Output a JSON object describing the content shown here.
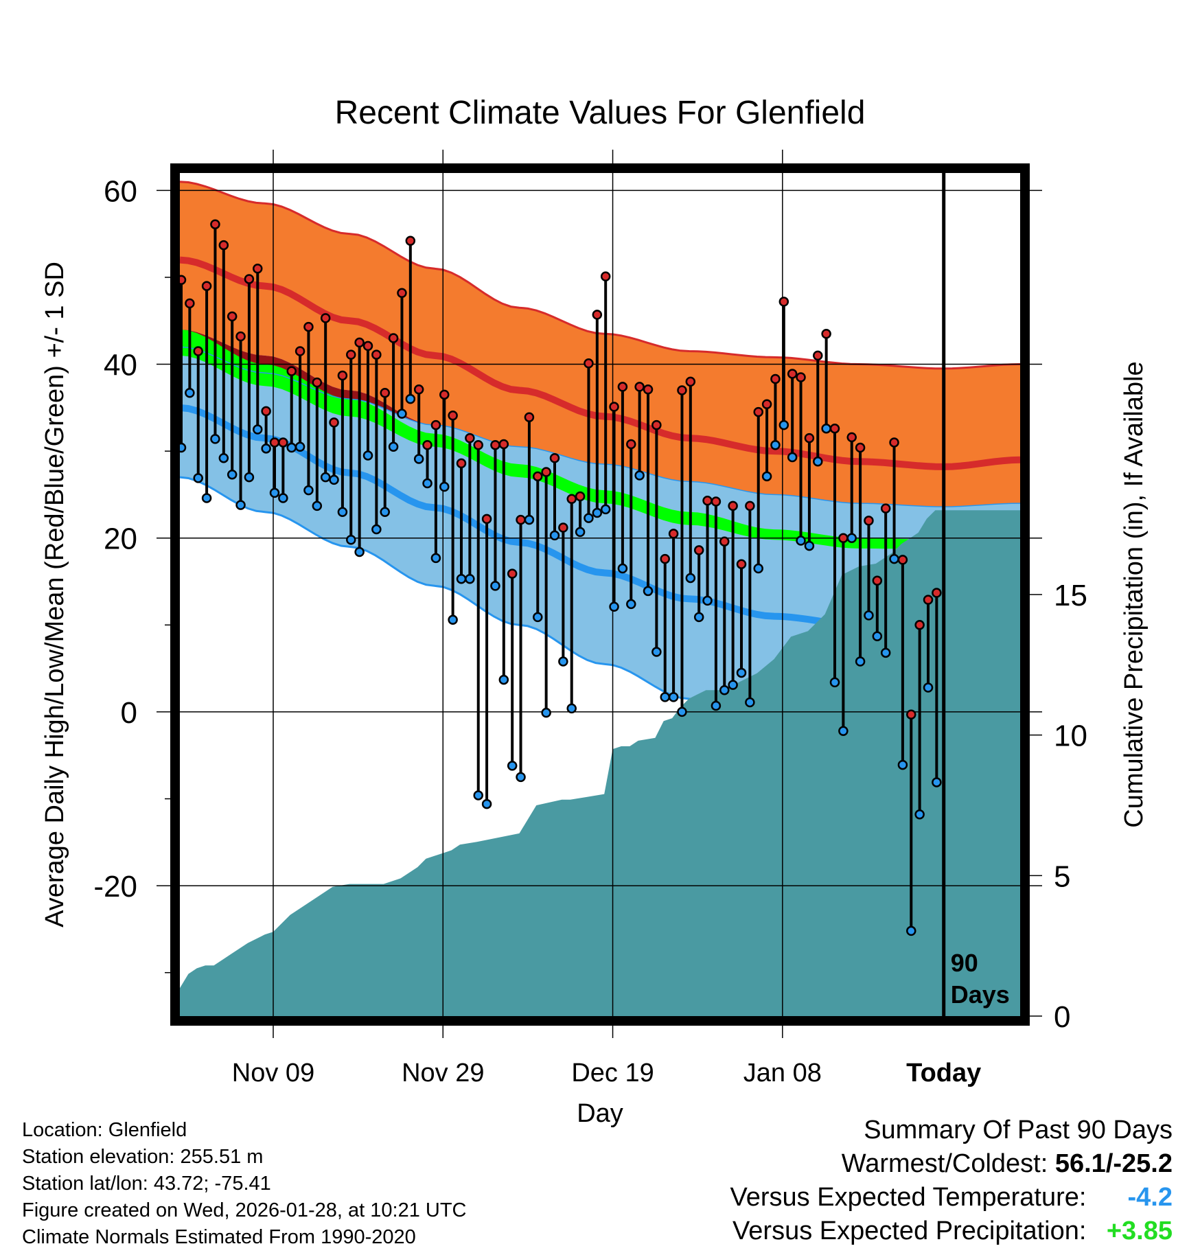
{
  "title": "Recent Climate Values For Glenfield",
  "colors": {
    "record_high_band": "#f47b2e",
    "record_high_edge": "#d62b2b",
    "mean_high_line": "#d62b2b",
    "high_sd_band": "#941317",
    "mean_band": "#00ff00",
    "low_sd_band": "#84c1e6",
    "low_edge": "#2795ee",
    "mean_low_line": "#2795ee",
    "precip_fill": "#4a9aa2",
    "high_dot": "#d62b2b",
    "low_dot": "#2795ee"
  },
  "chart_data": {
    "type": "range",
    "title": "Recent Climate Values For Glenfield",
    "xlabel": "Day",
    "ylabel_left": "Average Daily High/Low/Mean (Red/Blue/Green) +/- 1 SD",
    "ylabel_right": "Cumulative Precipitation (in), If Available",
    "ylim_left": [
      -35,
      62
    ],
    "ylim_right": [
      0,
      30
    ],
    "yticks_left": [
      60,
      40,
      20,
      0,
      -20
    ],
    "yticks_right": [
      15,
      10,
      5,
      0
    ],
    "x_range_days": [
      -90,
      9
    ],
    "x_ticks": [
      {
        "day": -79,
        "label": "Nov 09"
      },
      {
        "day": -59,
        "label": "Nov 29"
      },
      {
        "day": -39,
        "label": "Dec 19"
      },
      {
        "day": -19,
        "label": "Jan 08"
      },
      {
        "day": 0,
        "label": "Today"
      }
    ],
    "today_label": [
      "90",
      "Days"
    ],
    "normals_days": [
      -90,
      -80,
      -70,
      -60,
      -50,
      -40,
      -30,
      -20,
      -10,
      0,
      9
    ],
    "normals": {
      "upper_band_top": [
        61,
        58.5,
        55,
        51,
        46.5,
        43.5,
        41.5,
        40.8,
        40,
        39.5,
        40
      ],
      "mean_high": [
        52,
        49,
        45,
        41,
        37,
        34,
        31.5,
        30,
        28.8,
        28.2,
        29
      ],
      "high_sd_low": [
        44,
        41,
        37,
        33,
        29,
        25.5,
        22,
        19.5,
        17.5,
        17,
        18.5
      ],
      "mean_upper": [
        44,
        40,
        36,
        32,
        28.5,
        25.5,
        23,
        21,
        20,
        19.8,
        20.5
      ],
      "mean_lower": [
        41,
        37.5,
        34,
        30.5,
        27,
        24,
        21.5,
        19.8,
        18.8,
        18.7,
        19.3
      ],
      "mean_low": [
        35,
        31.5,
        27.5,
        23.5,
        19.5,
        16,
        13,
        11,
        10,
        9.8,
        10.5
      ],
      "lower_band_bottom": [
        27,
        23,
        19,
        14.5,
        10,
        5.5,
        1.5,
        -1.5,
        -3.5,
        -3,
        -1.8
      ],
      "lower_band_top": [
        42,
        39,
        36,
        33,
        30.5,
        28.5,
        26.5,
        25,
        24,
        23.6,
        24
      ]
    },
    "daily": {
      "highs": [
        49.7,
        47,
        41.5,
        49,
        56.1,
        53.7,
        45.5,
        43.2,
        49.8,
        51,
        34.6,
        31,
        31,
        39.2,
        41.5,
        44.3,
        37.9,
        45.3,
        33.3,
        38.7,
        41.1,
        42.5,
        42.1,
        41.1,
        36.7,
        43,
        48.2,
        54.2,
        37.1,
        30.7,
        33,
        36.5,
        34.1,
        28.6,
        31.5,
        30.7,
        22.2,
        30.7,
        30.8,
        15.9,
        22.1,
        33.9,
        27.1,
        27.6,
        29.2,
        21.2,
        24.5,
        24.8,
        40.1,
        45.7,
        50.1,
        35.1,
        37.4,
        30.8,
        37.4,
        37.1,
        33,
        17.6,
        20.5,
        37,
        38,
        18.6,
        24.3,
        24.2,
        19.6,
        23.7,
        17,
        23.7,
        34.5,
        35.4,
        38.3,
        47.2,
        38.9,
        38.5,
        31.5,
        41,
        43.5,
        32.6,
        20,
        31.6,
        30.4,
        22,
        15.1,
        23.4,
        31,
        17.5,
        -0.3,
        10,
        12.9,
        13.7
      ],
      "lows": [
        30.4,
        36.7,
        26.9,
        24.6,
        31.4,
        29.2,
        27.3,
        23.8,
        27,
        32.5,
        30.3,
        25.2,
        24.6,
        30.4,
        30.5,
        25.5,
        23.7,
        27,
        26.7,
        23,
        19.8,
        18.4,
        29.5,
        21,
        23,
        30.5,
        34.3,
        36,
        29.1,
        26.3,
        17.7,
        25.9,
        10.6,
        15.3,
        15.3,
        -9.6,
        -10.6,
        14.5,
        3.7,
        -6.2,
        -7.5,
        22.1,
        10.9,
        -0.1,
        20.3,
        5.8,
        0.4,
        20.7,
        22.3,
        22.9,
        23.3,
        12.1,
        16.5,
        12.4,
        27.2,
        13.9,
        6.9,
        1.7,
        1.7,
        0,
        15.4,
        10.9,
        12.8,
        0.7,
        2.5,
        3.1,
        4.5,
        1.1,
        16.5,
        27.1,
        30.7,
        33,
        29.3,
        19.7,
        19.1,
        28.8,
        32.6,
        3.4,
        -2.2,
        20,
        5.8,
        11.1,
        8.7,
        6.8,
        17.6,
        -6.1,
        -25.2,
        -11.8,
        2.8,
        -8.1
      ]
    },
    "precip": {
      "days": [
        -90,
        -89,
        -88,
        -87,
        -86,
        -84,
        -82,
        -80,
        -79,
        -77,
        -75,
        -74,
        -72,
        -70,
        -66,
        -64,
        -62,
        -61,
        -59,
        -58,
        -57,
        -55,
        -50,
        -48,
        -45,
        -44,
        -42,
        -40,
        -39,
        -38,
        -37,
        -36,
        -34,
        -33,
        -32,
        -31,
        -30,
        -28,
        -26,
        -24,
        -22,
        -20,
        -18,
        -16,
        -14,
        -12,
        -10,
        -8,
        -6,
        -5,
        -4,
        -3,
        -2,
        -1,
        0,
        9
      ],
      "values": [
        1.0,
        1.5,
        1.7,
        1.8,
        1.8,
        2.2,
        2.6,
        2.9,
        3.0,
        3.6,
        4.0,
        4.2,
        4.6,
        4.7,
        4.7,
        4.9,
        5.3,
        5.6,
        5.8,
        5.9,
        6.1,
        6.2,
        6.5,
        7.5,
        7.7,
        7.7,
        7.8,
        7.9,
        9.5,
        9.6,
        9.6,
        9.8,
        9.9,
        10.5,
        10.6,
        11.0,
        11.3,
        11.6,
        11.6,
        11.9,
        12.2,
        12.7,
        13.5,
        13.7,
        14.3,
        15.7,
        16.0,
        16.1,
        16.5,
        16.8,
        17.0,
        17.2,
        17.7,
        18.0,
        18.0,
        18.0
      ]
    }
  },
  "metadata": {
    "location": "Location: Glenfield",
    "elevation": "Station elevation: 255.51 m",
    "latlon": "Station lat/lon: 43.72; -75.41",
    "created": "Figure created on Wed, 2026-01-28, at 10:21 UTC",
    "normals": "Climate Normals Estimated From 1990-2020"
  },
  "summary": {
    "heading": "Summary Of Past 90 Days",
    "warmest_label": "Warmest/Coldest:",
    "warmest_value": "56.1/-25.2",
    "temp_label": "Versus Expected Temperature:",
    "temp_value": "-4.2",
    "temp_color": "#2795ee",
    "precip_label": "Versus Expected Precipitation:",
    "precip_value": "+3.85",
    "precip_color": "#22dd22"
  }
}
